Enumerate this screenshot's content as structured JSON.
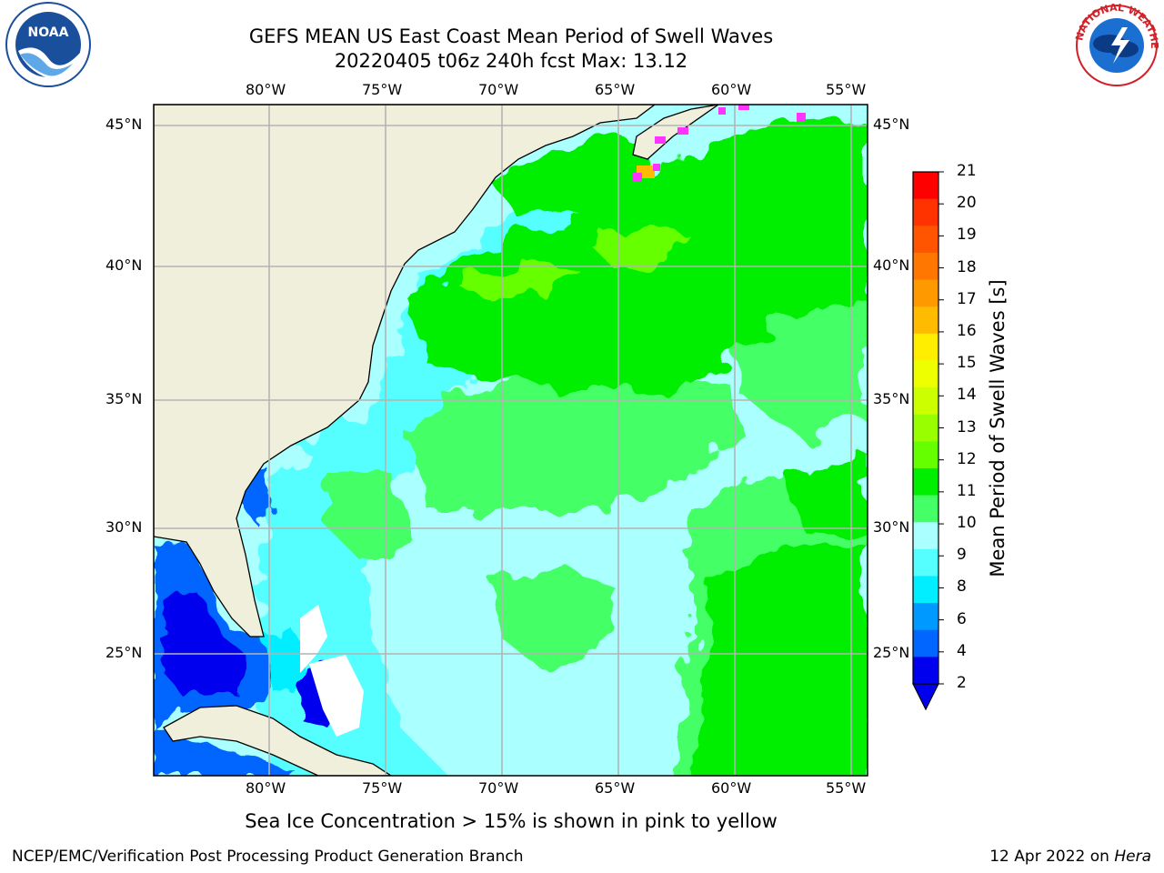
{
  "title_line1": "GEFS MEAN US East Coast Mean Period of Swell Waves",
  "title_line2": "20220405 t06z 240h fcst   Max: 13.12",
  "lon_labels": [
    "80°W",
    "75°W",
    "70°W",
    "65°W",
    "60°W",
    "55°W"
  ],
  "lat_labels": [
    "45°N",
    "40°N",
    "35°N",
    "30°N",
    "25°N"
  ],
  "colorbar": {
    "label": "Mean Period of Swell Waves [s]",
    "ticks": [
      "21",
      "20",
      "19",
      "18",
      "17",
      "16",
      "15",
      "14",
      "13",
      "12",
      "11",
      "10",
      "9",
      "8",
      "6",
      "4",
      "2"
    ],
    "colors": [
      "#ff0000",
      "#ff3300",
      "#ff5500",
      "#ff7700",
      "#ff9900",
      "#ffbb00",
      "#ffee00",
      "#eeff00",
      "#ccff00",
      "#99ff00",
      "#66ff00",
      "#00ee00",
      "#44ff66",
      "#aaffff",
      "#55ffff",
      "#00eeff",
      "#0099ff",
      "#0066ff",
      "#0000ee"
    ]
  },
  "subtitle": "Sea Ice Concentration > 15% is shown in pink to yellow",
  "footer": {
    "left": "NCEP/EMC/Verification Post Processing Product Generation Branch",
    "date": "12 Apr 2022 on",
    "machine": "Hera"
  },
  "logos": {
    "left": "NOAA",
    "right": "NATIONAL WEATHER SERVICE"
  }
}
